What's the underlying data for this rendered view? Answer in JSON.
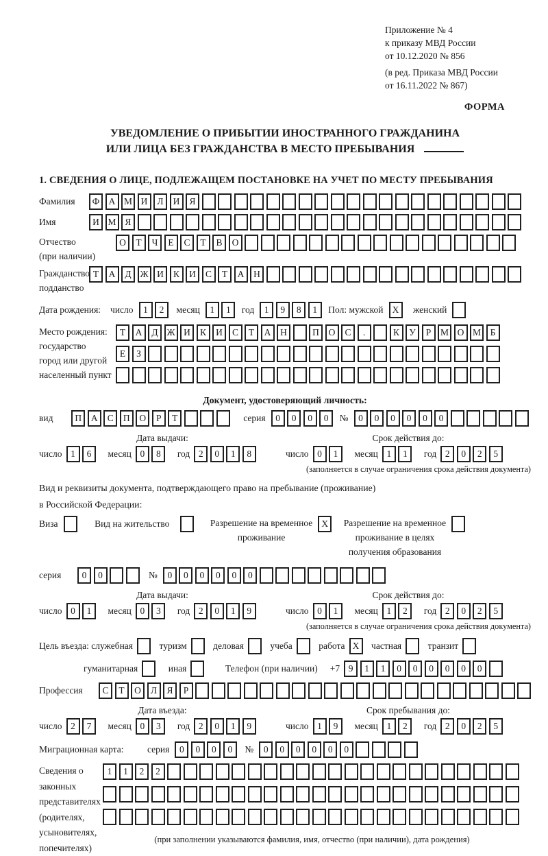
{
  "colors": {
    "ink": "#1a1a1a",
    "paper": "#ffffff"
  },
  "header": {
    "line1": "Приложение № 4",
    "line2": "к приказу МВД России",
    "line3": "от 10.12.2020 № 856",
    "line4": "(в ред. Приказа МВД России",
    "line5": "от 16.11.2022 № 867)",
    "forma": "ФОРМА"
  },
  "title": {
    "line1": "УВЕДОМЛЕНИЕ О ПРИБЫТИИ ИНОСТРАННОГО ГРАЖДАНИНА",
    "line2": "ИЛИ ЛИЦА БЕЗ ГРАЖДАНСТВА В МЕСТО ПРЕБЫВАНИЯ"
  },
  "section_heading": "1. СВЕДЕНИЯ О ЛИЦЕ, ПОДЛЕЖАЩЕМ ПОСТАНОВКЕ НА УЧЕТ ПО МЕСТУ ПРЕБЫВАНИЯ",
  "labels": {
    "surname": "Фамилия",
    "name": "Имя",
    "patronymic": "Отчество",
    "patronymic_note": "(при наличии)",
    "citizenship1": "Гражданство,",
    "citizenship2": "подданство",
    "birth_date": "Дата рождения:",
    "day": "число",
    "month": "месяц",
    "year": "год",
    "sex_male": "Пол: мужской",
    "sex_female": "женский",
    "birth_place": "Место рождения:",
    "state": "государство",
    "city1": "город или другой",
    "city2": "населенный пункт",
    "identity_doc": "Документ, удостоверяющий личность:",
    "doc_type": "вид",
    "series": "серия",
    "number": "№",
    "issue_date": "Дата выдачи:",
    "valid_until": "Срок действия до:",
    "valid_note": "(заполняется в случае ограничения срока действия документа)",
    "residence_doc1": "Вид и реквизиты документа, подтверждающего право на пребывание (проживание)",
    "residence_doc2": "в Российской Федерации:",
    "visa": "Виза",
    "residence_permit": "Вид на жительство",
    "temp_residence1": "Разрешение на временное",
    "temp_residence2": "проживание",
    "temp_residence_edu1": "Разрешение на временное",
    "temp_residence_edu2": "проживание в целях",
    "temp_residence_edu3": "получения образования",
    "purpose": "Цель въезда: служебная",
    "tourism": "туризм",
    "business": "деловая",
    "study": "учеба",
    "work": "работа",
    "private": "частная",
    "transit": "транзит",
    "humanitarian": "гуманитарная",
    "other": "иная",
    "phone": "Телефон (при наличии)",
    "phone_prefix": "+7",
    "profession": "Профессия",
    "entry_date": "Дата въезда:",
    "stay_until": "Срок пребывания до:",
    "migration_card": "Миграционная карта:",
    "guardians1": "Сведения о",
    "guardians2": "законных",
    "guardians3": "представителях",
    "guardians4": "(родителях,",
    "guardians5": "усыновителях,",
    "guardians6": "попечителях)",
    "guardians_note": "(при заполнении указываются фамилия, имя, отчество (при наличии), дата рождения)"
  },
  "fields": {
    "surname": {
      "chars": "ФАМИЛИЯ",
      "count": 27
    },
    "name": {
      "chars": "ИМЯ",
      "count": 27
    },
    "patronymic": {
      "chars": "ОТЧЕСТВО",
      "count": 25
    },
    "citizenship": {
      "chars": "ТАДЖИКИСТАН",
      "count": 27
    },
    "birth_day": {
      "chars": "12",
      "count": 2
    },
    "birth_month": {
      "chars": "11",
      "count": 2
    },
    "birth_year": {
      "chars": "1981",
      "count": 4
    },
    "sex_male_cb": {
      "chars": "X",
      "count": 1
    },
    "sex_female_cb": {
      "chars": "",
      "count": 1
    },
    "birth_place_row1": {
      "chars": "ТАДЖИКИСТАН ПОС. КУРМОМБ",
      "count": 24
    },
    "birth_place_row2": {
      "chars": "ЕЗ",
      "count": 24
    },
    "birth_place_row3": {
      "chars": "",
      "count": 24
    },
    "doc_type": {
      "chars": "ПАСПОРТ",
      "count": 10
    },
    "doc_series": {
      "chars": "0000",
      "count": 4
    },
    "doc_number": {
      "chars": "000000",
      "count": 11
    },
    "doc_issue_day": {
      "chars": "16",
      "count": 2
    },
    "doc_issue_month": {
      "chars": "08",
      "count": 2
    },
    "doc_issue_year": {
      "chars": "2018",
      "count": 4
    },
    "doc_valid_day": {
      "chars": "01",
      "count": 2
    },
    "doc_valid_month": {
      "chars": "11",
      "count": 2
    },
    "doc_valid_year": {
      "chars": "2025",
      "count": 4
    },
    "visa_cb": {
      "chars": "",
      "count": 1
    },
    "residence_permit_cb": {
      "chars": "",
      "count": 1
    },
    "temp_residence_cb": {
      "chars": "X",
      "count": 1
    },
    "temp_residence_edu_cb": {
      "chars": "",
      "count": 1
    },
    "res_series": {
      "chars": "00",
      "count": 4
    },
    "res_number": {
      "chars": "000000",
      "count": 14
    },
    "res_issue_day": {
      "chars": "01",
      "count": 2
    },
    "res_issue_month": {
      "chars": "03",
      "count": 2
    },
    "res_issue_year": {
      "chars": "2019",
      "count": 4
    },
    "res_valid_day": {
      "chars": "01",
      "count": 2
    },
    "res_valid_month": {
      "chars": "12",
      "count": 2
    },
    "res_valid_year": {
      "chars": "2025",
      "count": 4
    },
    "purpose_official_cb": {
      "chars": "",
      "count": 1
    },
    "tourism_cb": {
      "chars": "",
      "count": 1
    },
    "business_cb": {
      "chars": "",
      "count": 1
    },
    "study_cb": {
      "chars": "",
      "count": 1
    },
    "work_cb": {
      "chars": "X",
      "count": 1
    },
    "private_cb": {
      "chars": "",
      "count": 1
    },
    "transit_cb": {
      "chars": "",
      "count": 1
    },
    "humanitarian_cb": {
      "chars": "",
      "count": 1
    },
    "other_cb": {
      "chars": "",
      "count": 1
    },
    "phone": {
      "chars": "911000000",
      "count": 10
    },
    "profession": {
      "chars": "СТОЛЯР",
      "count": 27
    },
    "entry_day": {
      "chars": "27",
      "count": 2
    },
    "entry_month": {
      "chars": "03",
      "count": 2
    },
    "entry_year": {
      "chars": "2019",
      "count": 4
    },
    "stay_day": {
      "chars": "19",
      "count": 2
    },
    "stay_month": {
      "chars": "12",
      "count": 2
    },
    "stay_year": {
      "chars": "2025",
      "count": 4
    },
    "mig_series": {
      "chars": "0000",
      "count": 4
    },
    "mig_number": {
      "chars": "000000",
      "count": 10
    },
    "guardians_row1": {
      "chars": "1122",
      "count": 26
    },
    "guardians_row2": {
      "chars": "",
      "count": 26
    },
    "guardians_row3": {
      "chars": "",
      "count": 26
    }
  }
}
